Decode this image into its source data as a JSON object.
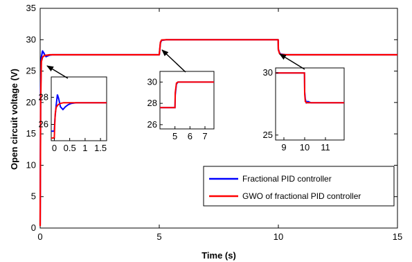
{
  "chart_data": {
    "type": "line",
    "xlabel": "Time (s)",
    "ylabel": "Open circuit voltage (V)",
    "xlim": [
      0,
      15
    ],
    "ylim": [
      0,
      35
    ],
    "xticks": [
      "0",
      "5",
      "10",
      "15"
    ],
    "yticks": [
      "0",
      "5",
      "10",
      "15",
      "20",
      "25",
      "30",
      "35"
    ],
    "grid": false,
    "legend_position": "lower-right",
    "series": [
      {
        "name": "Fractional PID controller",
        "color": "#0000ff",
        "x": [
          0,
          0.02,
          0.05,
          0.1,
          0.15,
          0.2,
          0.25,
          0.3,
          0.4,
          0.5,
          0.6,
          0.8,
          1.0,
          2,
          4,
          5.0,
          5.05,
          5.1,
          5.3,
          6,
          8,
          9.99,
          10.0,
          10.05,
          10.1,
          10.3,
          12,
          15
        ],
        "y": [
          0.5,
          22.0,
          27.2,
          28.2,
          27.9,
          27.5,
          27.3,
          27.4,
          27.55,
          27.6,
          27.6,
          27.6,
          27.6,
          27.6,
          27.6,
          27.6,
          29.5,
          29.9,
          30.0,
          30.0,
          30.0,
          30.0,
          28.5,
          27.9,
          27.7,
          27.6,
          27.6,
          27.6
        ]
      },
      {
        "name": "GWO of fractional PID controller",
        "color": "#ff0000",
        "x": [
          0,
          0.02,
          0.05,
          0.1,
          0.15,
          0.2,
          0.3,
          0.4,
          0.6,
          0.8,
          1.0,
          2,
          4,
          5.0,
          5.05,
          5.1,
          5.3,
          6,
          8,
          9.99,
          10.0,
          10.05,
          10.1,
          10.3,
          12,
          15
        ],
        "y": [
          0.3,
          20.0,
          26.5,
          27.2,
          27.4,
          27.5,
          27.55,
          27.6,
          27.6,
          27.6,
          27.6,
          27.6,
          27.6,
          27.6,
          29.6,
          29.95,
          30.0,
          30.0,
          30.0,
          30.0,
          28.4,
          27.8,
          27.65,
          27.6,
          27.6,
          27.6
        ]
      }
    ],
    "insets": [
      {
        "xlim": [
          -0.1,
          1.7
        ],
        "ylim": [
          24.8,
          29.5
        ],
        "xticks": [
          "0",
          "0.5",
          "1",
          "1.5"
        ],
        "yticks": [
          "26",
          "28"
        ],
        "series": [
          {
            "color": "#0000ff",
            "x": [
              -0.1,
              0.0,
              0.02,
              0.06,
              0.1,
              0.14,
              0.2,
              0.28,
              0.36,
              0.45,
              0.55,
              0.7,
              0.9,
              1.1,
              1.7
            ],
            "y": [
              25.5,
              25.5,
              26.4,
              27.4,
              28.2,
              27.9,
              27.3,
              27.1,
              27.3,
              27.45,
              27.55,
              27.6,
              27.6,
              27.6,
              27.6
            ]
          },
          {
            "color": "#ff0000",
            "x": [
              -0.1,
              0.0,
              0.015,
              0.03,
              0.06,
              0.12,
              0.2,
              0.3,
              0.45,
              0.6,
              0.9,
              1.7
            ],
            "y": [
              25.0,
              25.0,
              26.0,
              26.8,
              27.25,
              27.45,
              27.55,
              27.6,
              27.6,
              27.6,
              27.6,
              27.6
            ]
          }
        ]
      },
      {
        "xlim": [
          4.0,
          7.6
        ],
        "ylim": [
          25.6,
          31.0
        ],
        "xticks": [
          "5",
          "6",
          "7"
        ],
        "yticks": [
          "26",
          "28",
          "30"
        ],
        "series": [
          {
            "color": "#0000ff",
            "x": [
              4.0,
              5.0,
              5.02,
              5.1,
              5.2,
              5.4,
              7.6
            ],
            "y": [
              27.6,
              27.6,
              28.8,
              29.8,
              30.0,
              30.0,
              30.0
            ]
          },
          {
            "color": "#ff0000",
            "x": [
              4.0,
              5.0,
              5.02,
              5.1,
              5.2,
              5.4,
              7.6
            ],
            "y": [
              27.6,
              27.6,
              29.0,
              29.9,
              30.0,
              30.0,
              30.0
            ]
          }
        ]
      },
      {
        "xlim": [
          8.6,
          11.9
        ],
        "ylim": [
          24.6,
          30.4
        ],
        "xticks": [
          "9",
          "10",
          "11"
        ],
        "yticks": [
          "25",
          "30"
        ],
        "series": [
          {
            "color": "#0000ff",
            "x": [
              8.6,
              9.99,
              10.0,
              10.03,
              10.08,
              10.15,
              10.3,
              11.9
            ],
            "y": [
              30.0,
              30.0,
              28.5,
              27.9,
              27.6,
              27.7,
              27.6,
              27.6
            ]
          },
          {
            "color": "#ff0000",
            "x": [
              8.6,
              9.99,
              10.0,
              10.03,
              10.08,
              10.15,
              10.3,
              11.9
            ],
            "y": [
              30.0,
              30.0,
              28.3,
              27.7,
              27.6,
              27.6,
              27.6,
              27.6
            ]
          }
        ]
      }
    ]
  }
}
